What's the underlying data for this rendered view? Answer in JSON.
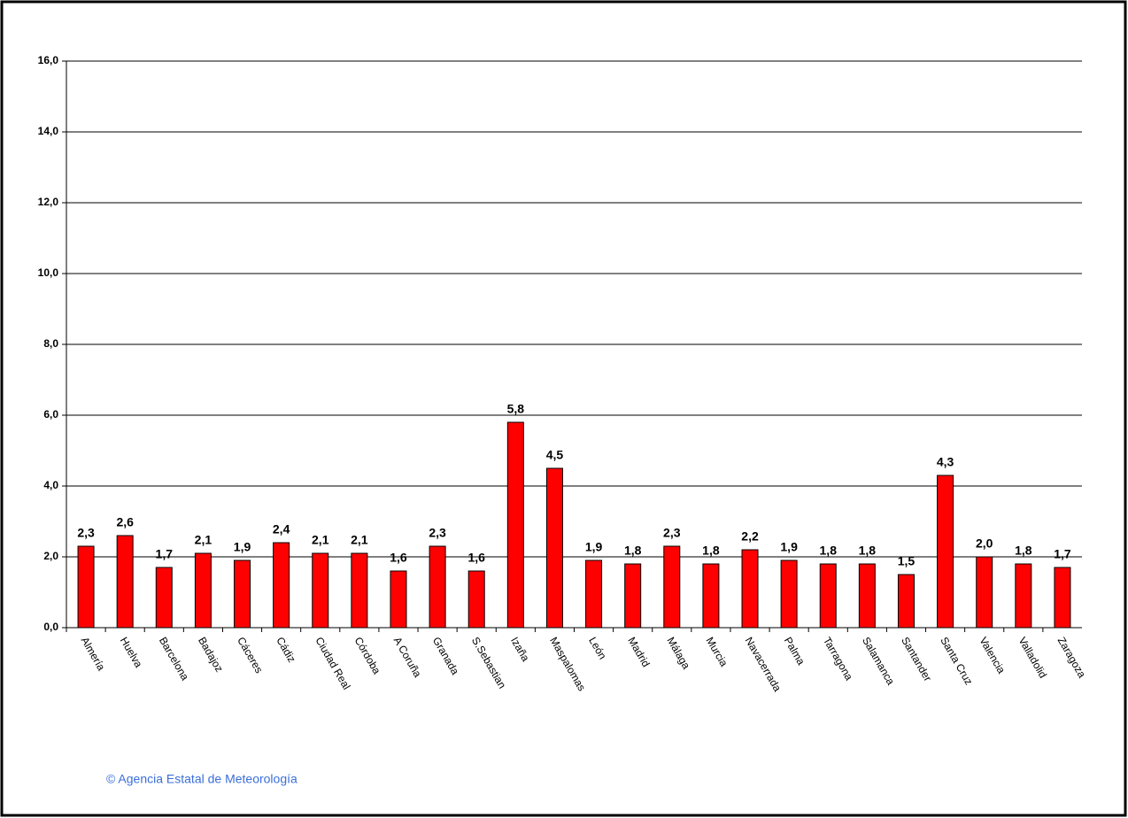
{
  "chart_data": {
    "type": "bar",
    "categories": [
      "Almería",
      "Huelva",
      "Barcelona",
      "Badajoz",
      "Cáceres",
      "Cádiz",
      "Ciudad Real",
      "Córdoba",
      "A Coruña",
      "Granada",
      "S.Sebastian",
      "Izaña",
      "Maspalomas",
      "León",
      "Madrid",
      "Málaga",
      "Murcia",
      "Navacerrada",
      "Palma",
      "Tarragona",
      "Salamanca",
      "Santander",
      "Santa Cruz",
      "Valencia",
      "Valladolid",
      "Zaragoza"
    ],
    "values": [
      2.3,
      2.6,
      1.7,
      2.1,
      1.9,
      2.4,
      2.1,
      2.1,
      1.6,
      2.3,
      1.6,
      5.8,
      4.5,
      1.9,
      1.8,
      2.3,
      1.8,
      2.2,
      1.9,
      1.8,
      1.8,
      1.5,
      4.3,
      2.0,
      1.8,
      1.7
    ],
    "value_labels": [
      "2,3",
      "2,6",
      "1,7",
      "2,1",
      "1,9",
      "2,4",
      "2,1",
      "2,1",
      "1,6",
      "2,3",
      "1,6",
      "5,8",
      "4,5",
      "1,9",
      "1,8",
      "2,3",
      "1,8",
      "2,2",
      "1,9",
      "1,8",
      "1,8",
      "1,5",
      "4,3",
      "2,0",
      "1,8",
      "1,7"
    ],
    "color": "#ff0000",
    "ylim": [
      0,
      16
    ],
    "yticks": [
      {
        "value": 0,
        "label": "0,0"
      },
      {
        "value": 2,
        "label": "2,0"
      },
      {
        "value": 4,
        "label": "4,0"
      },
      {
        "value": 6,
        "label": "6,0"
      },
      {
        "value": 8,
        "label": "8,0"
      },
      {
        "value": 10,
        "label": "10,0"
      },
      {
        "value": 12,
        "label": "12,0"
      },
      {
        "value": 14,
        "label": "14,0"
      },
      {
        "value": 16,
        "label": "16,0"
      }
    ],
    "grid": true,
    "footer": "© Agencia Estatal de Meteorología"
  }
}
